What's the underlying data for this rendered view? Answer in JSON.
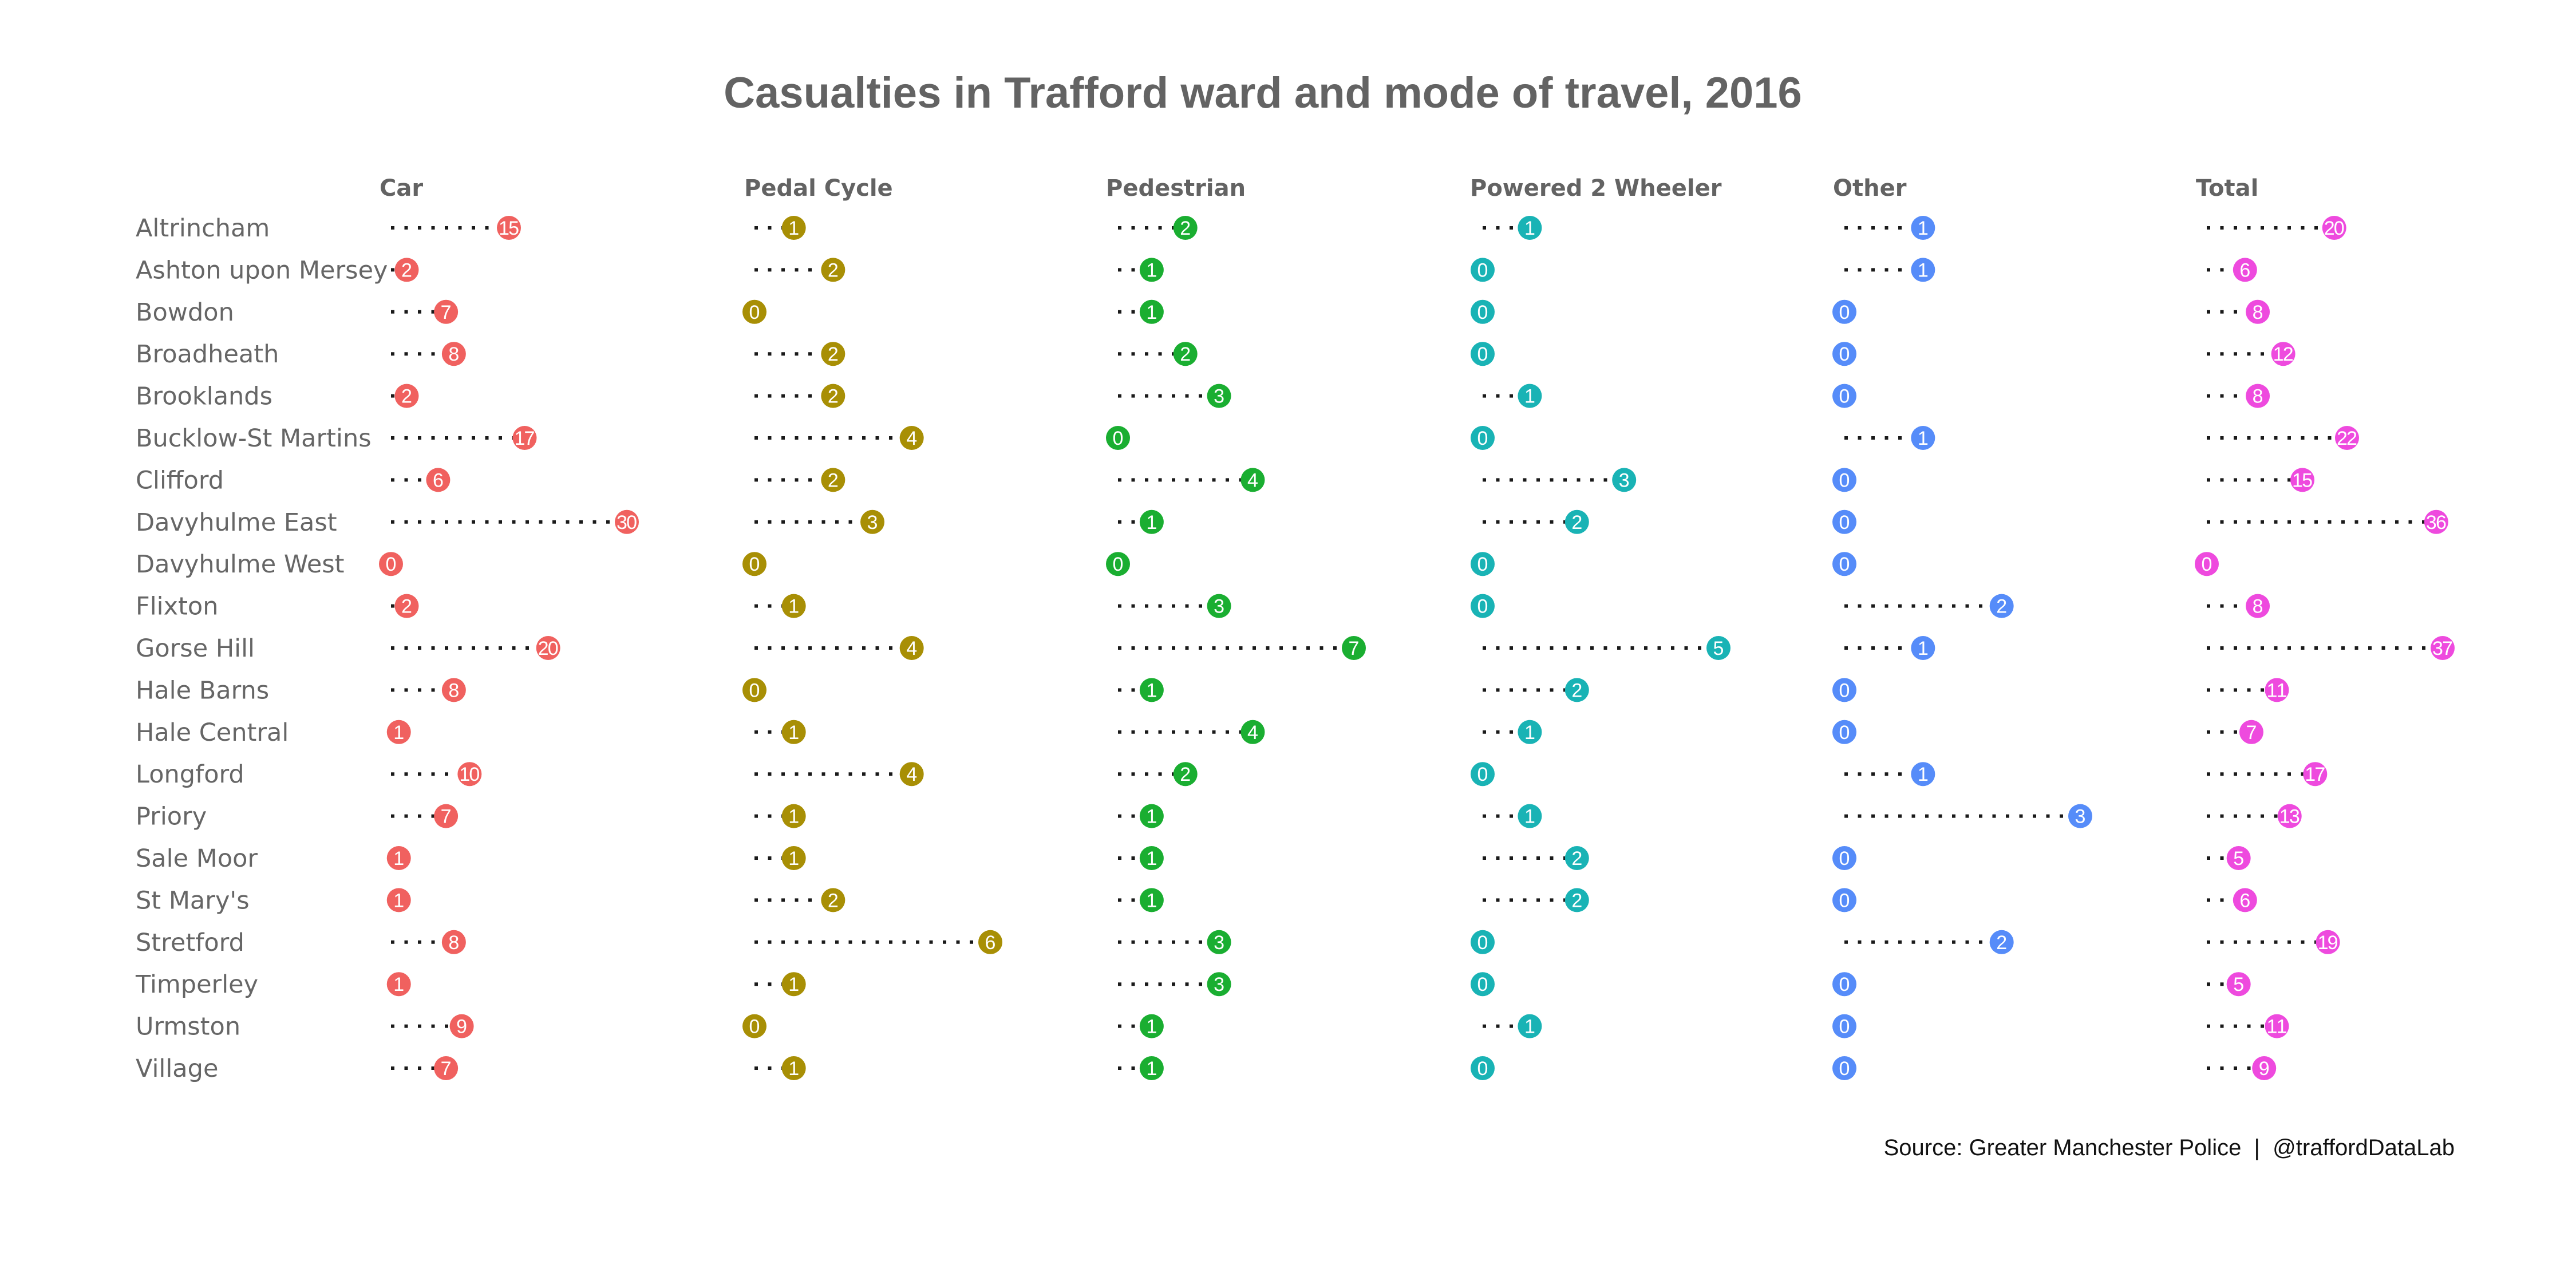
{
  "chart_data": {
    "type": "dot-plot",
    "title": "Casualties in Trafford ward and mode of travel, 2016",
    "caption": "Source: Greater Manchester Police  |  @traffordDataLab",
    "xlabel": "",
    "ylabel": "",
    "grid": false,
    "legend": "none",
    "categories": [
      "Altrincham",
      "Ashton upon Mersey",
      "Bowdon",
      "Broadheath",
      "Brooklands",
      "Bucklow-St Martins",
      "Clifford",
      "Davyhulme East",
      "Davyhulme West",
      "Flixton",
      "Gorse Hill",
      "Hale Barns",
      "Hale Central",
      "Longford",
      "Priory",
      "Sale Moor",
      "St Mary's",
      "Stretford",
      "Timperley",
      "Urmston",
      "Village"
    ],
    "series": [
      {
        "name": "Car",
        "color": "#F0615F",
        "values": [
          15,
          2,
          7,
          8,
          2,
          17,
          6,
          30,
          0,
          2,
          20,
          8,
          1,
          10,
          7,
          1,
          1,
          8,
          1,
          9,
          7
        ]
      },
      {
        "name": "Pedal Cycle",
        "color": "#A88F05",
        "values": [
          1,
          2,
          0,
          2,
          2,
          4,
          2,
          3,
          0,
          1,
          4,
          0,
          1,
          4,
          1,
          1,
          2,
          6,
          1,
          0,
          1
        ]
      },
      {
        "name": "Pedestrian",
        "color": "#1AAE31",
        "values": [
          2,
          1,
          1,
          2,
          3,
          0,
          4,
          1,
          0,
          3,
          7,
          1,
          4,
          2,
          1,
          1,
          1,
          3,
          3,
          1,
          1
        ]
      },
      {
        "name": "Powered 2 Wheeler",
        "color": "#19B3B5",
        "values": [
          1,
          0,
          0,
          0,
          1,
          0,
          3,
          2,
          0,
          0,
          5,
          2,
          1,
          0,
          1,
          2,
          2,
          0,
          0,
          1,
          0
        ]
      },
      {
        "name": "Other",
        "color": "#568CF9",
        "values": [
          1,
          1,
          0,
          0,
          0,
          1,
          0,
          0,
          0,
          2,
          1,
          0,
          0,
          1,
          3,
          0,
          0,
          2,
          0,
          0,
          0
        ]
      },
      {
        "name": "Total",
        "color": "#EE4ADE",
        "values": [
          20,
          6,
          8,
          12,
          8,
          22,
          15,
          36,
          0,
          8,
          37,
          11,
          7,
          17,
          13,
          5,
          6,
          19,
          5,
          11,
          9
        ]
      }
    ],
    "scales": "free-x per panel, each from 0 to panel maximum"
  }
}
